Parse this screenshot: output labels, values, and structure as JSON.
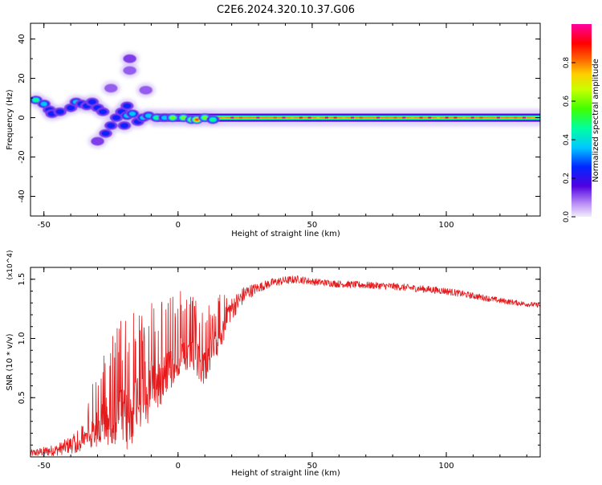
{
  "title": "C2E6.2024.320.10.37.G06",
  "chart_data": [
    {
      "type": "heatmap",
      "name": "spectrogram",
      "xlabel": "Height of straight line (km)",
      "ylabel": "Frequency (Hz)",
      "xlim": [
        -55,
        135
      ],
      "ylim": [
        -50,
        48
      ],
      "xticks": [
        -50,
        0,
        50,
        100
      ],
      "yticks": [
        40,
        20,
        0,
        -20,
        -40
      ],
      "colorbar": {
        "label": "Normalized spectral amplitude",
        "range": [
          0.0,
          1.0
        ],
        "ticks": [
          0.0,
          0.2,
          0.4,
          0.6,
          0.8
        ],
        "tick_labels": [
          "0.0",
          "0.2",
          "0.4",
          "0.6",
          "0.8"
        ]
      },
      "ridge": {
        "description": "dominant frequency near 0 Hz along height",
        "x_range": [
          -10,
          135
        ],
        "frequency": 0
      },
      "scatter_blobs": [
        {
          "x": -53,
          "y": 9,
          "amp": 0.55
        },
        {
          "x": -50,
          "y": 7,
          "amp": 0.45
        },
        {
          "x": -48,
          "y": 4,
          "amp": 0.35
        },
        {
          "x": -47,
          "y": 2,
          "amp": 0.3
        },
        {
          "x": -44,
          "y": 3,
          "amp": 0.35
        },
        {
          "x": -40,
          "y": 5,
          "amp": 0.3
        },
        {
          "x": -38,
          "y": 8,
          "amp": 0.45
        },
        {
          "x": -36,
          "y": 7,
          "amp": 0.35
        },
        {
          "x": -34,
          "y": 6,
          "amp": 0.3
        },
        {
          "x": -32,
          "y": 8,
          "amp": 0.35
        },
        {
          "x": -30,
          "y": 5,
          "amp": 0.3
        },
        {
          "x": -28,
          "y": 3,
          "amp": 0.25
        },
        {
          "x": -30,
          "y": -12,
          "amp": 0.2
        },
        {
          "x": -27,
          "y": -8,
          "amp": 0.3
        },
        {
          "x": -25,
          "y": -4,
          "amp": 0.3
        },
        {
          "x": -23,
          "y": 0,
          "amp": 0.3
        },
        {
          "x": -21,
          "y": 3,
          "amp": 0.3
        },
        {
          "x": -19,
          "y": 6,
          "amp": 0.3
        },
        {
          "x": -20,
          "y": -4,
          "amp": 0.25
        },
        {
          "x": -19,
          "y": 1,
          "amp": 0.45
        },
        {
          "x": -17,
          "y": 2,
          "amp": 0.4
        },
        {
          "x": -15,
          "y": -2,
          "amp": 0.35
        },
        {
          "x": -13,
          "y": 0,
          "amp": 0.45
        },
        {
          "x": -11,
          "y": 1,
          "amp": 0.4
        },
        {
          "x": -8,
          "y": 0,
          "amp": 0.5
        },
        {
          "x": -5,
          "y": 0,
          "amp": 0.45
        },
        {
          "x": -2,
          "y": 0,
          "amp": 0.6
        },
        {
          "x": 2,
          "y": 0,
          "amp": 0.7
        },
        {
          "x": 5,
          "y": -1,
          "amp": 0.6
        },
        {
          "x": 7,
          "y": -1,
          "amp": 0.95
        },
        {
          "x": 10,
          "y": 0,
          "amp": 0.6
        },
        {
          "x": 13,
          "y": -1,
          "amp": 0.5
        },
        {
          "x": -18,
          "y": 30,
          "amp": 0.12
        },
        {
          "x": -18,
          "y": 24,
          "amp": 0.1
        },
        {
          "x": -25,
          "y": 15,
          "amp": 0.1
        },
        {
          "x": -12,
          "y": 14,
          "amp": 0.1
        }
      ]
    },
    {
      "type": "line",
      "name": "snr",
      "xlabel": "Height of straight line (km)",
      "ylabel": "SNR (10 * v/v)",
      "multiplier_label": "(x10^4)",
      "xlim": [
        -55,
        135
      ],
      "ylim": [
        0.0,
        1.6
      ],
      "xticks": [
        -50,
        0,
        50,
        100
      ],
      "yticks": [
        0.5,
        1.0,
        1.5
      ],
      "ytick_labels": [
        "0.5",
        "1.0",
        "1.5"
      ],
      "color": "#e41a1c",
      "envelope": {
        "x": [
          -55,
          -45,
          -38,
          -32,
          -28,
          -25,
          -22,
          -18,
          -15,
          -12,
          -10,
          -7,
          -5,
          -3,
          0,
          3,
          6,
          10,
          15,
          20,
          25,
          30,
          35,
          40,
          45,
          50,
          60,
          70,
          80,
          90,
          100,
          110,
          120,
          130,
          135
        ],
        "y": [
          0.03,
          0.06,
          0.12,
          0.35,
          0.55,
          0.65,
          0.7,
          0.62,
          0.85,
          0.65,
          0.95,
          0.85,
          1.0,
          0.98,
          1.1,
          1.0,
          1.05,
          1.0,
          1.15,
          1.25,
          1.38,
          1.43,
          1.47,
          1.49,
          1.5,
          1.48,
          1.46,
          1.45,
          1.44,
          1.42,
          1.4,
          1.36,
          1.32,
          1.29,
          1.28
        ]
      },
      "noise_amplitude": {
        "x": [
          -55,
          -45,
          -35,
          -28,
          -20,
          -10,
          0,
          10,
          20,
          30,
          50,
          100,
          135
        ],
        "y": [
          0.03,
          0.05,
          0.1,
          0.35,
          0.45,
          0.35,
          0.3,
          0.28,
          0.1,
          0.04,
          0.03,
          0.03,
          0.02
        ]
      }
    }
  ]
}
